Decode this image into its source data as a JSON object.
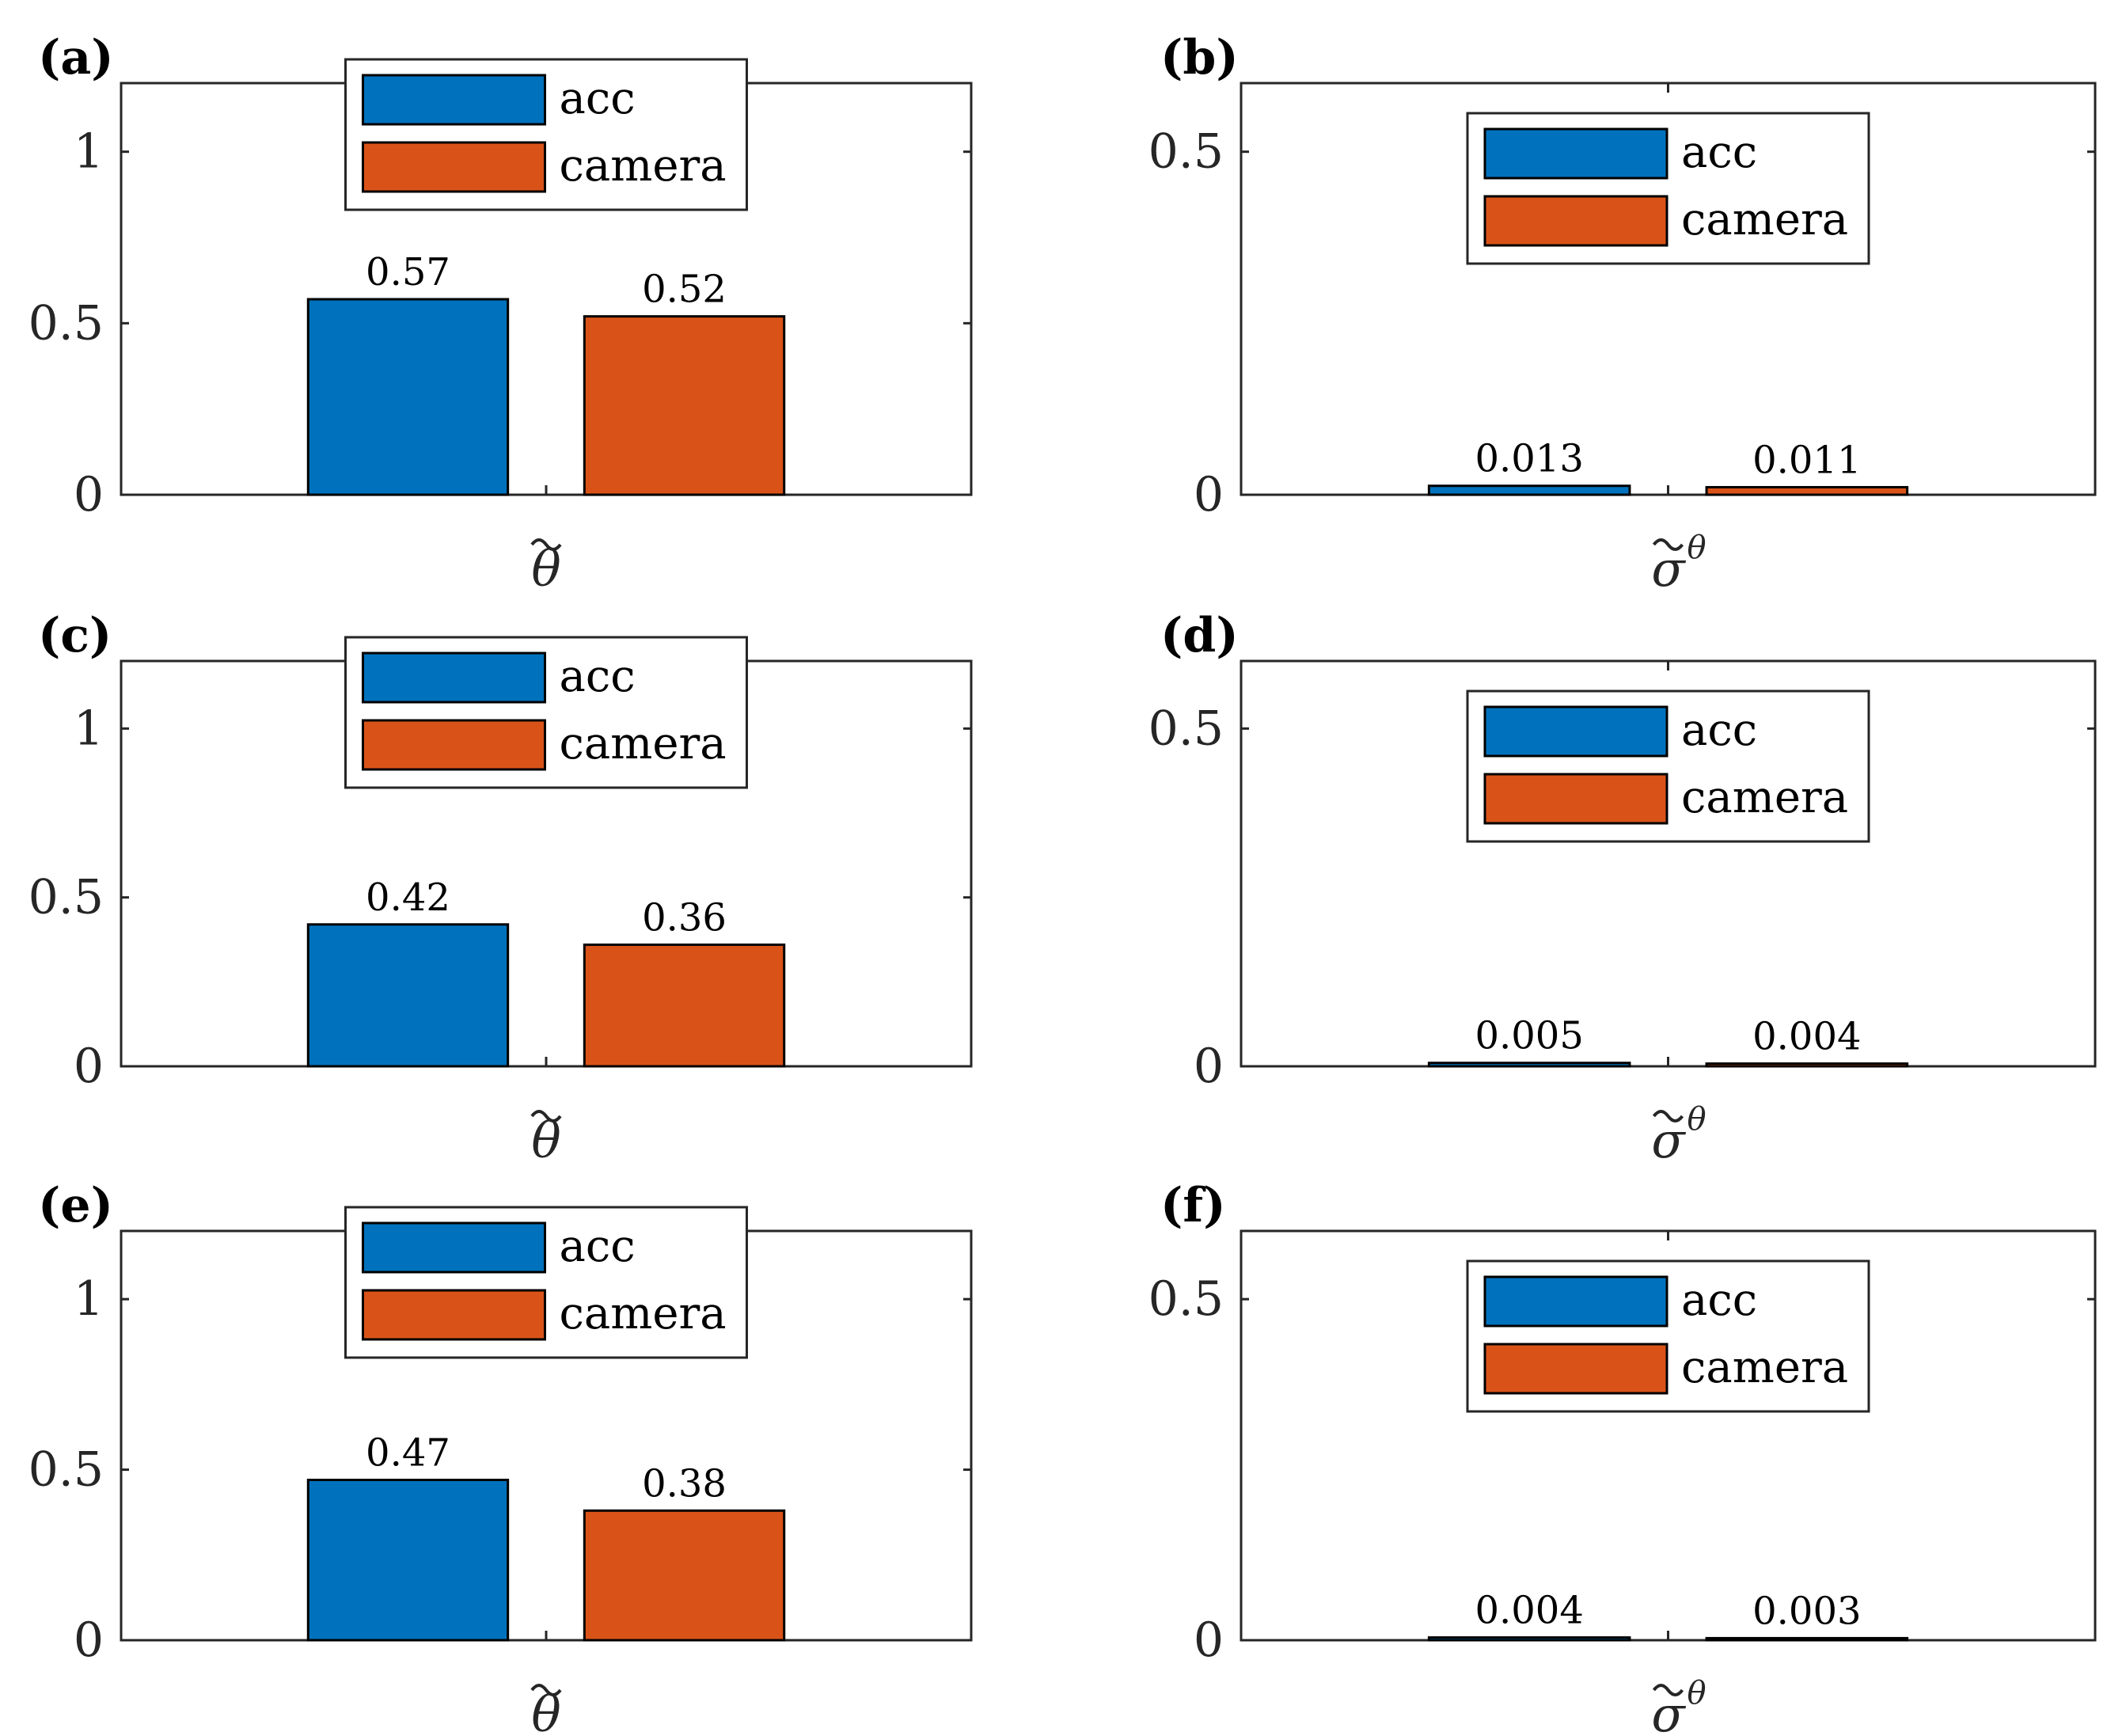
{
  "figure": {
    "colors": {
      "acc": "#0072BD",
      "camera": "#D95319"
    }
  },
  "chart_data": [
    {
      "panel": "(a)",
      "type": "bar",
      "categories": [
        "acc",
        "camera"
      ],
      "values": [
        0.57,
        0.52
      ],
      "value_labels": [
        "0.57",
        "0.52"
      ],
      "xlabel": "θ̃",
      "ylim": [
        0,
        1.2
      ],
      "yticks": [
        0,
        0.5,
        1
      ],
      "ytick_labels": [
        "0",
        "0.5",
        "1"
      ],
      "legend": [
        "acc",
        "camera"
      ],
      "legend_placement": "top-center"
    },
    {
      "panel": "(b)",
      "type": "bar",
      "categories": [
        "acc",
        "camera"
      ],
      "values": [
        0.013,
        0.011
      ],
      "value_labels": [
        "0.013",
        "0.011"
      ],
      "xlabel": "σ̃",
      "xlabel_sup": "θ",
      "ylim": [
        0,
        0.6
      ],
      "yticks": [
        0,
        0.5
      ],
      "ytick_labels": [
        "0",
        "0.5"
      ],
      "legend": [
        "acc",
        "camera"
      ],
      "legend_placement": "top-center"
    },
    {
      "panel": "(c)",
      "type": "bar",
      "categories": [
        "acc",
        "camera"
      ],
      "values": [
        0.42,
        0.36
      ],
      "value_labels": [
        "0.42",
        "0.36"
      ],
      "xlabel": "θ̃",
      "ylim": [
        0,
        1.2
      ],
      "yticks": [
        0,
        0.5,
        1
      ],
      "ytick_labels": [
        "0",
        "0.5",
        "1"
      ],
      "legend": [
        "acc",
        "camera"
      ],
      "legend_placement": "top-center"
    },
    {
      "panel": "(d)",
      "type": "bar",
      "categories": [
        "acc",
        "camera"
      ],
      "values": [
        0.005,
        0.004
      ],
      "value_labels": [
        "0.005",
        "0.004"
      ],
      "xlabel": "σ̃",
      "xlabel_sup": "θ",
      "ylim": [
        0,
        0.6
      ],
      "yticks": [
        0,
        0.5
      ],
      "ytick_labels": [
        "0",
        "0.5"
      ],
      "legend": [
        "acc",
        "camera"
      ],
      "legend_placement": "top-center"
    },
    {
      "panel": "(e)",
      "type": "bar",
      "categories": [
        "acc",
        "camera"
      ],
      "values": [
        0.47,
        0.38
      ],
      "value_labels": [
        "0.47",
        "0.38"
      ],
      "xlabel": "θ̃",
      "ylim": [
        0,
        1.2
      ],
      "yticks": [
        0,
        0.5,
        1
      ],
      "ytick_labels": [
        "0",
        "0.5",
        "1"
      ],
      "legend": [
        "acc",
        "camera"
      ],
      "legend_placement": "top-center"
    },
    {
      "panel": "(f)",
      "type": "bar",
      "categories": [
        "acc",
        "camera"
      ],
      "values": [
        0.004,
        0.003
      ],
      "value_labels": [
        "0.004",
        "0.003"
      ],
      "xlabel": "σ̃",
      "xlabel_sup": "θ",
      "ylim": [
        0,
        0.6
      ],
      "yticks": [
        0,
        0.5
      ],
      "ytick_labels": [
        "0",
        "0.5"
      ],
      "legend": [
        "acc",
        "camera"
      ],
      "legend_placement": "top-center"
    }
  ]
}
